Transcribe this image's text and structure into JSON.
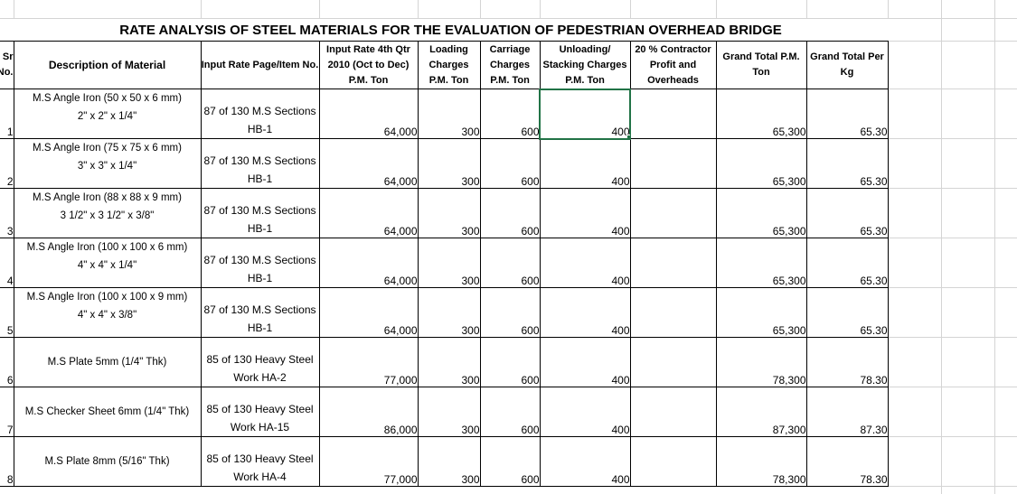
{
  "title": "RATE ANALYSIS OF STEEL MATERIALS FOR THE EVALUATION OF PEDESTRIAN OVERHEAD BRIDGE",
  "headers": {
    "sr": "Sr No.",
    "description": "Description of Material",
    "page_item": "Input Rate Page/Item No.",
    "input_rate": "Input Rate 4th Qtr 2010 (Oct to Dec) P.M. Ton",
    "loading": "Loading Charges P.M. Ton",
    "carriage": "Carriage Charges P.M. Ton",
    "unloading": "Unloading/ Stacking Charges P.M. Ton",
    "contractor": "20 % Contractor Profit and Overheads",
    "gt_ton": "Grand Total P.M. Ton",
    "gt_kg": "Grand Total Per Kg"
  },
  "selection_color": "#217346",
  "rows": [
    {
      "sr": "1",
      "desc1": "M.S Angle Iron  (50 x 50 x 6 mm)",
      "desc2": "2\" x 2\" x 1/4\"",
      "page": "87 of 130 M.S Sections HB-1",
      "input": "64,000",
      "loading": "300",
      "carriage": "600",
      "unloading": "400",
      "contractor": "",
      "gt_ton": "65,300",
      "gt_kg": "65.30"
    },
    {
      "sr": "2",
      "desc1": "M.S Angle Iron  (75 x 75 x 6 mm)",
      "desc2": "3\" x 3\" x 1/4\"",
      "page": "87 of 130 M.S Sections HB-1",
      "input": "64,000",
      "loading": "300",
      "carriage": "600",
      "unloading": "400",
      "contractor": "",
      "gt_ton": "65,300",
      "gt_kg": "65.30"
    },
    {
      "sr": "3",
      "desc1": "M.S Angle Iron  (88 x 88 x 9 mm)",
      "desc2": "3 1/2\" x 3 1/2\" x 3/8\"",
      "page": "87 of 130 M.S Sections HB-1",
      "input": "64,000",
      "loading": "300",
      "carriage": "600",
      "unloading": "400",
      "contractor": "",
      "gt_ton": "65,300",
      "gt_kg": "65.30"
    },
    {
      "sr": "4",
      "desc1": "M.S Angle Iron  (100 x 100 x 6 mm)",
      "desc2": "4\" x 4\" x 1/4\"",
      "page": "87 of 130 M.S Sections HB-1",
      "input": "64,000",
      "loading": "300",
      "carriage": "600",
      "unloading": "400",
      "contractor": "",
      "gt_ton": "65,300",
      "gt_kg": "65.30"
    },
    {
      "sr": "5",
      "desc1": "M.S Angle Iron  (100 x 100 x 9 mm)",
      "desc2": "4\" x 4\" x 3/8\"",
      "page": "87 of 130 M.S Sections HB-1",
      "input": "64,000",
      "loading": "300",
      "carriage": "600",
      "unloading": "400",
      "contractor": "",
      "gt_ton": "65,300",
      "gt_kg": "65.30"
    },
    {
      "sr": "6",
      "desc1": "M.S Plate 5mm (1/4\" Thk)",
      "desc2": "",
      "page": "85 of 130 Heavy Steel Work HA-2",
      "input": "77,000",
      "loading": "300",
      "carriage": "600",
      "unloading": "400",
      "contractor": "",
      "gt_ton": "78,300",
      "gt_kg": "78.30"
    },
    {
      "sr": "7",
      "desc1": "M.S Checker Sheet 6mm (1/4\" Thk)",
      "desc2": "",
      "page": "85 of 130 Heavy Steel Work HA-15",
      "input": "86,000",
      "loading": "300",
      "carriage": "600",
      "unloading": "400",
      "contractor": "",
      "gt_ton": "87,300",
      "gt_kg": "87.30"
    },
    {
      "sr": "8",
      "desc1": "M.S Plate 8mm (5/16\" Thk)",
      "desc2": "",
      "page": "85 of 130 Heavy Steel Work HA-4",
      "input": "77,000",
      "loading": "300",
      "carriage": "600",
      "unloading": "400",
      "contractor": "",
      "gt_ton": "78,300",
      "gt_kg": "78.30"
    }
  ]
}
